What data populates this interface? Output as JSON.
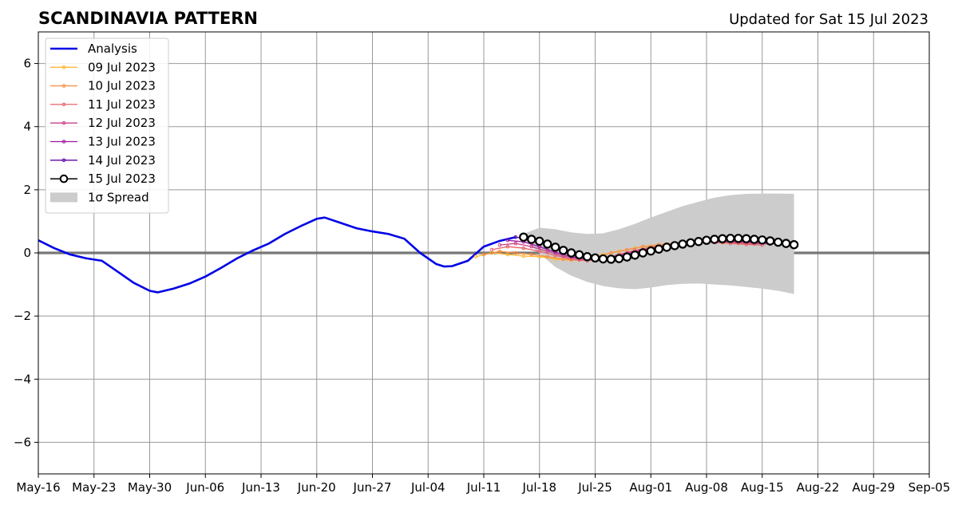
{
  "chart_data": {
    "type": "line",
    "title": "SCANDINAVIA PATTERN",
    "subtitle": "Updated for Sat 15 Jul 2023",
    "xlabel": "",
    "ylabel": "",
    "x_axis": "date",
    "xlim": [
      "2023-05-16",
      "2023-09-05"
    ],
    "ylim": [
      -7,
      7
    ],
    "grid": true,
    "zero_line": true,
    "legend_position": "top-left",
    "xticks": [
      "May-16",
      "May-23",
      "May-30",
      "Jun-06",
      "Jun-13",
      "Jun-20",
      "Jun-27",
      "Jul-04",
      "Jul-11",
      "Jul-18",
      "Jul-25",
      "Aug-01",
      "Aug-08",
      "Aug-15",
      "Aug-22",
      "Aug-29",
      "Sep-05"
    ],
    "yticks": [
      6,
      4,
      2,
      0,
      -2,
      -4,
      -6
    ],
    "ytick_labels": [
      "6",
      "4",
      "2",
      "0",
      "−2",
      "−4",
      "−6"
    ],
    "legend": [
      "Analysis",
      "09 Jul 2023",
      "10 Jul 2023",
      "11 Jul 2023",
      "12 Jul 2023",
      "13 Jul 2023",
      "14 Jul 2023",
      "15 Jul 2023",
      "1σ Spread"
    ],
    "analysis": {
      "name": "Analysis",
      "color": "#0000e6",
      "x": [
        "2023-05-16",
        "2023-05-18",
        "2023-05-20",
        "2023-05-22",
        "2023-05-24",
        "2023-05-26",
        "2023-05-28",
        "2023-05-30",
        "2023-05-31",
        "2023-06-02",
        "2023-06-04",
        "2023-06-06",
        "2023-06-08",
        "2023-06-10",
        "2023-06-12",
        "2023-06-14",
        "2023-06-16",
        "2023-06-18",
        "2023-06-20",
        "2023-06-21",
        "2023-06-23",
        "2023-06-25",
        "2023-06-27",
        "2023-06-29",
        "2023-07-01",
        "2023-07-03",
        "2023-07-05",
        "2023-07-06",
        "2023-07-07",
        "2023-07-09",
        "2023-07-11",
        "2023-07-13",
        "2023-07-15"
      ],
      "values": [
        0.4,
        0.15,
        -0.05,
        -0.17,
        -0.25,
        -0.6,
        -0.95,
        -1.2,
        -1.25,
        -1.13,
        -0.97,
        -0.75,
        -0.47,
        -0.17,
        0.08,
        0.3,
        0.6,
        0.85,
        1.08,
        1.12,
        0.95,
        0.78,
        0.68,
        0.6,
        0.45,
        0.0,
        -0.35,
        -0.43,
        -0.42,
        -0.25,
        0.2,
        0.38,
        0.5
      ]
    },
    "forecasts": [
      {
        "name": "09 Jul 2023",
        "color": "#fdb832",
        "x": [
          "2023-07-10",
          "2023-07-12",
          "2023-07-14",
          "2023-07-16",
          "2023-07-18",
          "2023-07-20",
          "2023-07-22",
          "2023-07-24",
          "2023-07-26",
          "2023-07-28",
          "2023-07-30",
          "2023-08-01",
          "2023-08-03",
          "2023-08-05",
          "2023-08-07",
          "2023-08-09",
          "2023-08-11",
          "2023-08-13"
        ],
        "values": [
          -0.12,
          0.0,
          -0.05,
          -0.1,
          -0.12,
          -0.2,
          -0.23,
          -0.2,
          -0.05,
          0.05,
          0.15,
          0.22,
          0.28,
          0.33,
          0.35,
          0.37,
          0.35,
          0.32
        ]
      },
      {
        "name": "10 Jul 2023",
        "color": "#f98e3f",
        "x": [
          "2023-07-11",
          "2023-07-13",
          "2023-07-15",
          "2023-07-17",
          "2023-07-19",
          "2023-07-21",
          "2023-07-23",
          "2023-07-25",
          "2023-07-27",
          "2023-07-29",
          "2023-07-31",
          "2023-08-02",
          "2023-08-04",
          "2023-08-06",
          "2023-08-08",
          "2023-08-10",
          "2023-08-12",
          "2023-08-14"
        ],
        "values": [
          -0.05,
          0.05,
          0.0,
          -0.05,
          -0.12,
          -0.2,
          -0.23,
          -0.15,
          0.0,
          0.1,
          0.2,
          0.26,
          0.3,
          0.34,
          0.35,
          0.32,
          0.3,
          0.28
        ]
      },
      {
        "name": "11 Jul 2023",
        "color": "#e5626a",
        "x": [
          "2023-07-12",
          "2023-07-14",
          "2023-07-16",
          "2023-07-18",
          "2023-07-20",
          "2023-07-22",
          "2023-07-24",
          "2023-07-26",
          "2023-07-28",
          "2023-07-30",
          "2023-08-01",
          "2023-08-03",
          "2023-08-05",
          "2023-08-07",
          "2023-08-09",
          "2023-08-11",
          "2023-08-13",
          "2023-08-15"
        ],
        "values": [
          0.1,
          0.2,
          0.15,
          0.05,
          -0.08,
          -0.2,
          -0.25,
          -0.18,
          -0.05,
          0.08,
          0.18,
          0.25,
          0.3,
          0.33,
          0.33,
          0.3,
          0.27,
          0.25
        ]
      },
      {
        "name": "12 Jul 2023",
        "color": "#c9408a",
        "x": [
          "2023-07-13",
          "2023-07-15",
          "2023-07-17",
          "2023-07-19",
          "2023-07-21",
          "2023-07-23",
          "2023-07-25",
          "2023-07-27",
          "2023-07-29",
          "2023-07-31",
          "2023-08-02",
          "2023-08-04",
          "2023-08-06",
          "2023-08-08",
          "2023-08-10",
          "2023-08-12",
          "2023-08-14",
          "2023-08-16"
        ],
        "values": [
          0.25,
          0.3,
          0.2,
          0.05,
          -0.1,
          -0.2,
          -0.2,
          -0.12,
          0.0,
          0.1,
          0.2,
          0.27,
          0.32,
          0.35,
          0.35,
          0.33,
          0.3,
          0.28
        ]
      },
      {
        "name": "13 Jul 2023",
        "color": "#9c179e",
        "x": [
          "2023-07-14",
          "2023-07-16",
          "2023-07-18",
          "2023-07-20",
          "2023-07-22",
          "2023-07-24",
          "2023-07-26",
          "2023-07-28",
          "2023-07-30",
          "2023-08-01",
          "2023-08-03",
          "2023-08-05",
          "2023-08-07",
          "2023-08-09",
          "2023-08-11",
          "2023-08-13",
          "2023-08-15",
          "2023-08-17"
        ],
        "values": [
          0.4,
          0.35,
          0.2,
          0.02,
          -0.12,
          -0.2,
          -0.18,
          -0.1,
          0.02,
          0.12,
          0.22,
          0.3,
          0.35,
          0.38,
          0.38,
          0.35,
          0.32,
          0.3
        ]
      },
      {
        "name": "14 Jul 2023",
        "color": "#5c06a8",
        "x": [
          "2023-07-15",
          "2023-07-17",
          "2023-07-19",
          "2023-07-21",
          "2023-07-23",
          "2023-07-25",
          "2023-07-27",
          "2023-07-29",
          "2023-07-31",
          "2023-08-02",
          "2023-08-04",
          "2023-08-06",
          "2023-08-08",
          "2023-08-10",
          "2023-08-12",
          "2023-08-14",
          "2023-08-16",
          "2023-08-18"
        ],
        "values": [
          0.5,
          0.42,
          0.25,
          0.08,
          -0.08,
          -0.17,
          -0.18,
          -0.12,
          0.0,
          0.12,
          0.22,
          0.3,
          0.36,
          0.4,
          0.4,
          0.38,
          0.35,
          0.3
        ]
      }
    ],
    "latest": {
      "name": "15 Jul 2023",
      "color": "#000000",
      "x": [
        "2023-07-16",
        "2023-07-17",
        "2023-07-18",
        "2023-07-19",
        "2023-07-20",
        "2023-07-21",
        "2023-07-22",
        "2023-07-23",
        "2023-07-24",
        "2023-07-25",
        "2023-07-26",
        "2023-07-27",
        "2023-07-28",
        "2023-07-29",
        "2023-07-30",
        "2023-07-31",
        "2023-08-01",
        "2023-08-02",
        "2023-08-03",
        "2023-08-04",
        "2023-08-05",
        "2023-08-06",
        "2023-08-07",
        "2023-08-08",
        "2023-08-09",
        "2023-08-10",
        "2023-08-11",
        "2023-08-12",
        "2023-08-13",
        "2023-08-14",
        "2023-08-15",
        "2023-08-16",
        "2023-08-17",
        "2023-08-18",
        "2023-08-19"
      ],
      "values": [
        0.5,
        0.43,
        0.37,
        0.28,
        0.18,
        0.08,
        0.0,
        -0.06,
        -0.12,
        -0.16,
        -0.19,
        -0.2,
        -0.18,
        -0.13,
        -0.07,
        0.0,
        0.06,
        0.12,
        0.18,
        0.23,
        0.28,
        0.32,
        0.36,
        0.4,
        0.43,
        0.45,
        0.46,
        0.46,
        0.45,
        0.43,
        0.41,
        0.38,
        0.34,
        0.3,
        0.26
      ]
    },
    "spread": {
      "name": "1σ Spread",
      "color": "#cccccc",
      "x": [
        "2023-07-16",
        "2023-07-18",
        "2023-07-20",
        "2023-07-22",
        "2023-07-24",
        "2023-07-26",
        "2023-07-28",
        "2023-07-30",
        "2023-08-01",
        "2023-08-03",
        "2023-08-05",
        "2023-08-07",
        "2023-08-09",
        "2023-08-11",
        "2023-08-13",
        "2023-08-15",
        "2023-08-17",
        "2023-08-19"
      ],
      "upper": [
        0.6,
        0.8,
        0.75,
        0.65,
        0.6,
        0.62,
        0.75,
        0.92,
        1.12,
        1.3,
        1.48,
        1.62,
        1.75,
        1.83,
        1.87,
        1.88,
        1.88,
        1.87
      ],
      "lower": [
        0.42,
        -0.02,
        -0.45,
        -0.72,
        -0.92,
        -1.05,
        -1.12,
        -1.15,
        -1.1,
        -1.02,
        -0.98,
        -0.97,
        -1.0,
        -1.03,
        -1.08,
        -1.13,
        -1.2,
        -1.3
      ]
    }
  }
}
